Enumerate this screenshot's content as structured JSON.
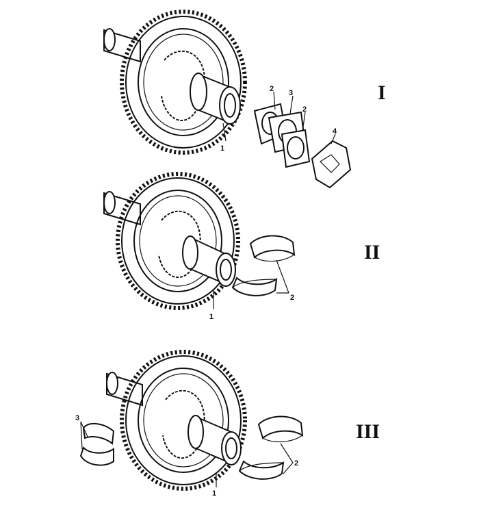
{
  "groups": [
    {
      "numeral": "I",
      "callouts": [
        "1",
        "2",
        "3",
        "2",
        "4"
      ]
    },
    {
      "numeral": "II",
      "callouts": [
        "1",
        "2"
      ]
    },
    {
      "numeral": "III",
      "callouts": [
        "1",
        "2",
        "3"
      ]
    }
  ],
  "icons": [
    "gear-icon",
    "shaft-icon",
    "bearing-shell-icon",
    "bearing-plate-icon"
  ],
  "colors": {
    "ink": "#111111",
    "paper": "#ffffff"
  }
}
